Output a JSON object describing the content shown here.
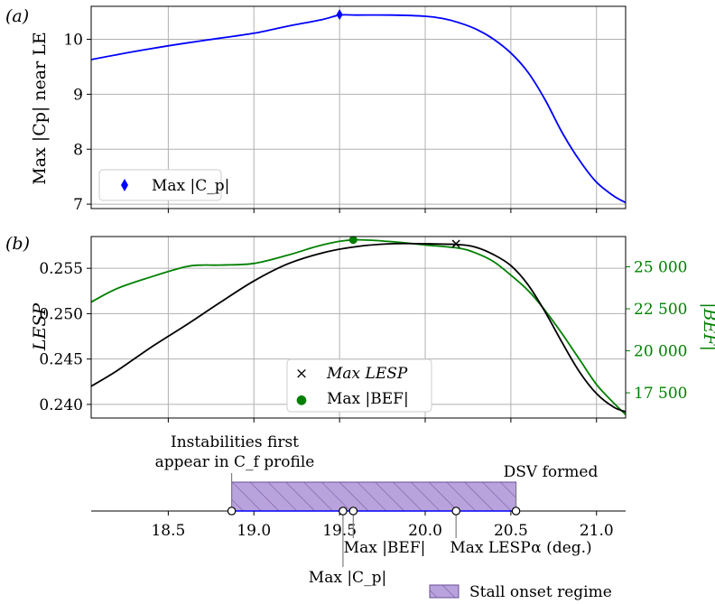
{
  "colors": {
    "cp_line": "#0000ff",
    "lesp_line": "#000000",
    "bef_line": "#008000",
    "bef_axis": "#008000",
    "grid": "#b0b0b0",
    "regime_fill": "#b9a3dc",
    "regime_hatch": "#7b5aa8"
  },
  "panel_a": {
    "label": "(a)",
    "ylabel": "Max |Cp| near LE",
    "legend_label": "Max |C_p|",
    "yticks": [
      "7",
      "8",
      "9",
      "10"
    ]
  },
  "panel_b": {
    "label": "(b)",
    "ylabel": "LESP",
    "ylabel_right": "|BEF|",
    "yticks_left": [
      "0.240",
      "0.245",
      "0.250",
      "0.255"
    ],
    "yticks_right": [
      "17 500",
      "20 000",
      "22 500",
      "25 000"
    ],
    "legend": [
      {
        "marker": "×",
        "label": "Max LESP"
      },
      {
        "marker": "●",
        "label": "Max |BEF|"
      }
    ]
  },
  "panel_c": {
    "xticks": [
      "18.5",
      "19.0",
      "19.5",
      "20.0",
      "20.5",
      "21.0"
    ],
    "xlabel": "α (deg.)",
    "annotations": {
      "instab_line1": "Instabilities first",
      "instab_line2": "appear in C_f profile",
      "dsv": "DSV formed",
      "max_bef": "Max |BEF|",
      "max_cp": "Max |C_p|",
      "max_lesp": "Max LESP"
    },
    "legend_label": "Stall onset regime"
  },
  "chart_data": [
    {
      "type": "line",
      "panel": "a",
      "ylabel": "Max |Cp| near LE",
      "xlim": [
        18.05,
        21.17
      ],
      "ylim": [
        6.92,
        10.6
      ],
      "series": [
        {
          "name": "Max |C_p|",
          "x": [
            18.05,
            18.2,
            18.4,
            18.6,
            18.8,
            19.0,
            19.2,
            19.4,
            19.5,
            19.6,
            19.8,
            20.0,
            20.1,
            20.2,
            20.3,
            20.4,
            20.5,
            20.6,
            20.7,
            20.8,
            20.9,
            21.0,
            21.1,
            21.17
          ],
          "y": [
            9.63,
            9.72,
            9.83,
            9.93,
            10.02,
            10.11,
            10.24,
            10.36,
            10.44,
            10.44,
            10.44,
            10.42,
            10.38,
            10.3,
            10.18,
            10.0,
            9.75,
            9.4,
            8.9,
            8.3,
            7.8,
            7.4,
            7.15,
            7.03
          ]
        }
      ],
      "markers": [
        {
          "label": "Max |C_p|",
          "x": 19.5,
          "y": 10.45
        }
      ]
    },
    {
      "type": "line",
      "panel": "b",
      "ylabel": "LESP",
      "ylabel_right": "|BEF|",
      "xlim": [
        18.05,
        21.17
      ],
      "ylim": [
        0.2385,
        0.2585
      ],
      "ylim_right": [
        16000,
        26800
      ],
      "series": [
        {
          "name": "LESP",
          "axis": "left",
          "x": [
            18.05,
            18.2,
            18.4,
            18.6,
            18.8,
            19.0,
            19.2,
            19.4,
            19.6,
            19.8,
            20.0,
            20.2,
            20.3,
            20.4,
            20.5,
            20.6,
            20.7,
            20.8,
            20.9,
            21.0,
            21.1,
            21.17
          ],
          "y": [
            0.242,
            0.2437,
            0.2463,
            0.2487,
            0.2512,
            0.2536,
            0.2555,
            0.2567,
            0.2574,
            0.2577,
            0.2577,
            0.2576,
            0.2573,
            0.2565,
            0.2553,
            0.2532,
            0.2502,
            0.2468,
            0.2436,
            0.2412,
            0.2397,
            0.2392
          ]
        },
        {
          "name": "|BEF|",
          "axis": "right",
          "x": [
            18.05,
            18.2,
            18.4,
            18.6,
            18.7,
            18.8,
            19.0,
            19.2,
            19.4,
            19.58,
            19.8,
            20.0,
            20.2,
            20.3,
            20.4,
            20.5,
            20.6,
            20.7,
            20.8,
            20.9,
            21.0,
            21.1,
            21.17
          ],
          "y": [
            22900,
            23700,
            24400,
            25000,
            25100,
            25100,
            25200,
            25700,
            26300,
            26600,
            26500,
            26300,
            26100,
            25800,
            25300,
            24500,
            23600,
            22400,
            21000,
            19500,
            18000,
            16900,
            16200
          ]
        }
      ],
      "markers": [
        {
          "label": "Max LESP",
          "x": 20.18,
          "y": 0.2577,
          "axis": "left"
        },
        {
          "label": "Max |BEF|",
          "x": 19.58,
          "y": 26600,
          "axis": "right"
        }
      ]
    },
    {
      "type": "timeline",
      "panel": "c",
      "xlabel": "α (deg.)",
      "xlim": [
        18.05,
        21.17
      ],
      "regime": {
        "label": "Stall onset regime",
        "start": 18.87,
        "end": 20.53
      },
      "events": [
        {
          "label": "Instabilities first appear in C_f profile",
          "x": 18.87
        },
        {
          "label": "Max |C_p|",
          "x": 19.52
        },
        {
          "label": "Max |BEF|",
          "x": 19.58
        },
        {
          "label": "Max LESP",
          "x": 20.18
        },
        {
          "label": "DSV formed",
          "x": 20.53
        }
      ]
    }
  ]
}
